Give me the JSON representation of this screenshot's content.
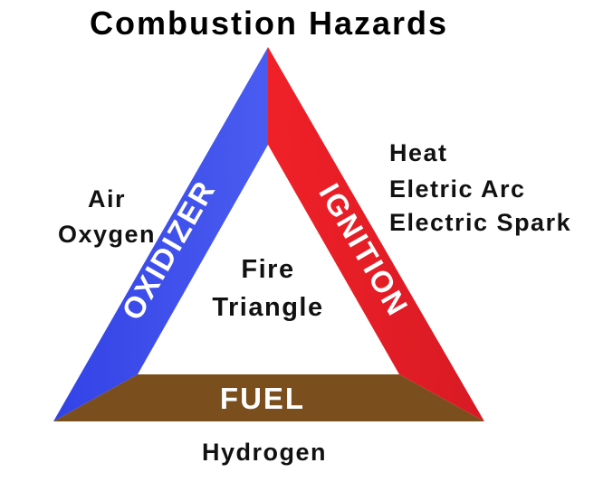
{
  "title": "Combustion Hazards",
  "center": {
    "line1": "Fire",
    "line2": "Triangle"
  },
  "sides": {
    "oxidizer": {
      "label": "OXIDIZER",
      "color": "#3A4DEB",
      "examples": [
        "Air",
        "Oxygen"
      ]
    },
    "ignition": {
      "label": "IGNITION",
      "color": "#E8202A",
      "examples": [
        "Heat",
        "Eletric Arc",
        "Electric Spark"
      ]
    },
    "fuel": {
      "label": "FUEL",
      "color": "#7B4E1E",
      "examples": [
        "Hydrogen"
      ]
    }
  }
}
